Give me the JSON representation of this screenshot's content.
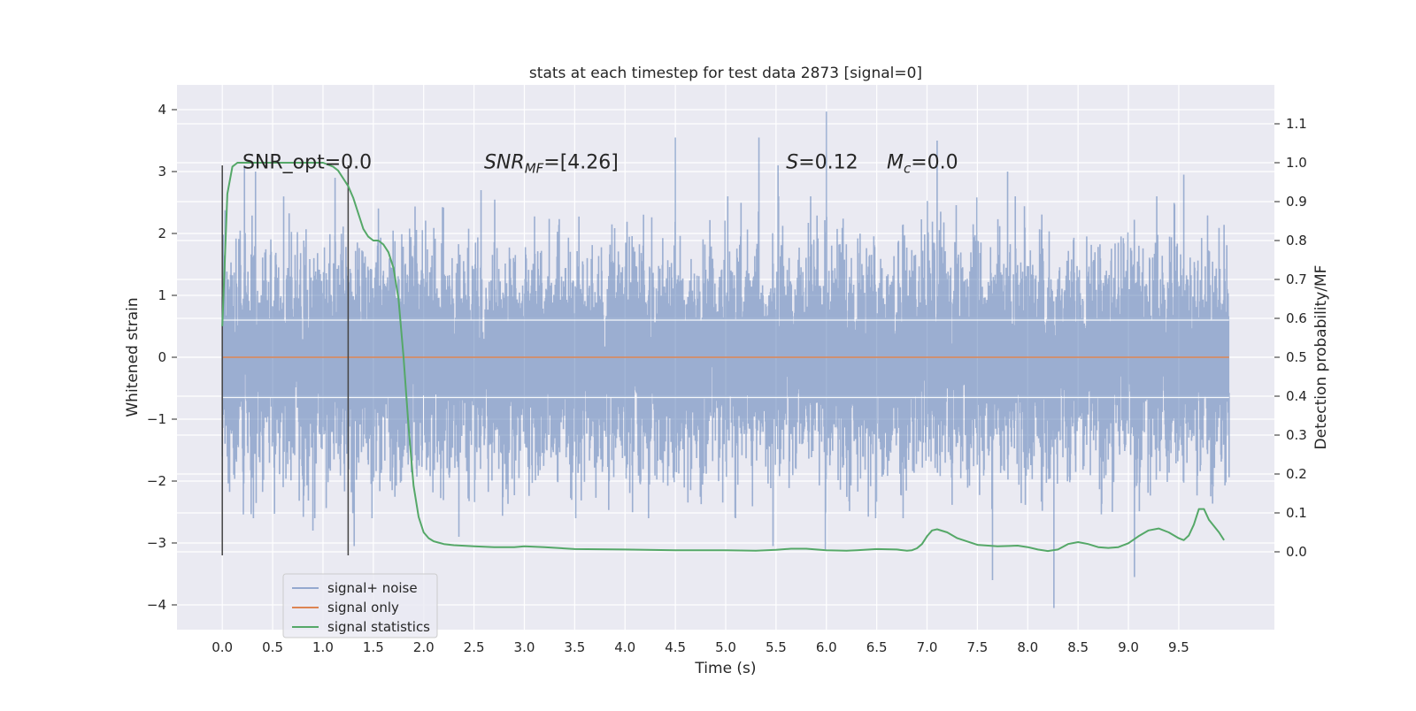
{
  "chart_data": {
    "type": "line",
    "title": "stats at each timestep for test data 2873 [signal=0]",
    "xlabel": "Time (s)",
    "ylabel": "Whitened strain",
    "ylabel_right": "Detection probability/MF",
    "xlim": [
      -0.45,
      10.45
    ],
    "ylim": [
      -4.4,
      4.4
    ],
    "ylim_right": [
      -0.2,
      1.2
    ],
    "x_ticks": [
      0.0,
      0.5,
      1.0,
      1.5,
      2.0,
      2.5,
      3.0,
      3.5,
      4.0,
      4.5,
      5.0,
      5.5,
      6.0,
      6.5,
      7.0,
      7.5,
      8.0,
      8.5,
      9.0,
      9.5
    ],
    "x_tick_labels": [
      "0.0",
      "0.5",
      "1.0",
      "1.5",
      "2.0",
      "2.5",
      "3.0",
      "3.5",
      "4.0",
      "4.5",
      "5.0",
      "5.5",
      "6.0",
      "6.5",
      "7.0",
      "7.5",
      "8.0",
      "8.5",
      "9.0",
      "9.5"
    ],
    "y_ticks": [
      -4,
      -3,
      -2,
      -1,
      0,
      1,
      2,
      3,
      4
    ],
    "y_tick_labels": [
      "−4",
      "−3",
      "−2",
      "−1",
      "0",
      "1",
      "2",
      "3",
      "4"
    ],
    "y_right_ticks": [
      0.0,
      0.1,
      0.2,
      0.3,
      0.4,
      0.5,
      0.6,
      0.7,
      0.8,
      0.9,
      1.0,
      1.1
    ],
    "y_right_tick_labels": [
      "0.0",
      "0.1",
      "0.2",
      "0.3",
      "0.4",
      "0.5",
      "0.6",
      "0.7",
      "0.8",
      "0.9",
      "1.0",
      "1.1"
    ],
    "grid": true,
    "legend_position": "bottom-left",
    "series": [
      {
        "name": "signal+ noise",
        "color": "#4c72b0",
        "axis": "left",
        "style": "dense noisy strain, roughly within -2 to 2.5, spikes up to ~4 and down to ~-4",
        "x_range": [
          0.0,
          10.0
        ],
        "spikes": [
          {
            "x": 0.22,
            "y": 3.1
          },
          {
            "x": 0.33,
            "y": 3.0
          },
          {
            "x": 1.12,
            "y": 2.9
          },
          {
            "x": 2.57,
            "y": 2.7
          },
          {
            "x": 4.5,
            "y": 3.55
          },
          {
            "x": 5.33,
            "y": 3.55
          },
          {
            "x": 5.52,
            "y": 3.1
          },
          {
            "x": 6.0,
            "y": 3.97
          },
          {
            "x": 7.1,
            "y": 3.5
          },
          {
            "x": 7.8,
            "y": 3.0
          },
          {
            "x": 9.55,
            "y": 2.95
          },
          {
            "x": 0.9,
            "y": -2.8
          },
          {
            "x": 1.31,
            "y": -3.05
          },
          {
            "x": 2.35,
            "y": -2.9
          },
          {
            "x": 5.47,
            "y": -3.05
          },
          {
            "x": 5.99,
            "y": -3.1
          },
          {
            "x": 7.65,
            "y": -3.6
          },
          {
            "x": 8.26,
            "y": -4.05
          },
          {
            "x": 9.06,
            "y": -3.55
          }
        ]
      },
      {
        "name": "signal only",
        "color": "#dd8452",
        "axis": "left",
        "x": [
          0.0,
          10.0
        ],
        "y": [
          0.0,
          0.0
        ]
      },
      {
        "name": "signal statistics",
        "color": "#55a868",
        "axis": "right",
        "x": [
          0.0,
          0.05,
          0.1,
          0.15,
          0.2,
          0.3,
          0.5,
          0.8,
          1.0,
          1.1,
          1.15,
          1.2,
          1.25,
          1.3,
          1.35,
          1.4,
          1.45,
          1.5,
          1.55,
          1.6,
          1.65,
          1.7,
          1.75,
          1.8,
          1.85,
          1.9,
          1.95,
          2.0,
          2.05,
          2.1,
          2.2,
          2.3,
          2.5,
          2.7,
          2.9,
          3.0,
          3.2,
          3.5,
          4.0,
          4.5,
          5.0,
          5.3,
          5.5,
          5.65,
          5.8,
          6.0,
          6.2,
          6.3,
          6.5,
          6.7,
          6.8,
          6.85,
          6.9,
          6.95,
          7.0,
          7.05,
          7.1,
          7.2,
          7.3,
          7.5,
          7.7,
          7.9,
          8.0,
          8.1,
          8.2,
          8.3,
          8.4,
          8.5,
          8.6,
          8.7,
          8.8,
          8.9,
          9.0,
          9.1,
          9.2,
          9.3,
          9.4,
          9.5,
          9.55,
          9.6,
          9.65,
          9.7,
          9.75,
          9.8,
          9.9,
          9.95
        ],
        "y": [
          0.58,
          0.92,
          0.99,
          1.0,
          1.0,
          1.0,
          1.0,
          1.0,
          1.0,
          0.99,
          0.98,
          0.96,
          0.94,
          0.91,
          0.87,
          0.83,
          0.81,
          0.8,
          0.8,
          0.79,
          0.77,
          0.73,
          0.65,
          0.5,
          0.32,
          0.17,
          0.09,
          0.05,
          0.035,
          0.027,
          0.02,
          0.017,
          0.014,
          0.012,
          0.012,
          0.014,
          0.012,
          0.007,
          0.006,
          0.004,
          0.004,
          0.003,
          0.005,
          0.008,
          0.008,
          0.004,
          0.003,
          0.004,
          0.007,
          0.006,
          0.003,
          0.004,
          0.009,
          0.02,
          0.04,
          0.055,
          0.058,
          0.05,
          0.035,
          0.018,
          0.014,
          0.016,
          0.012,
          0.006,
          0.002,
          0.006,
          0.02,
          0.025,
          0.02,
          0.012,
          0.01,
          0.012,
          0.022,
          0.04,
          0.055,
          0.06,
          0.05,
          0.035,
          0.03,
          0.042,
          0.07,
          0.11,
          0.11,
          0.082,
          0.05,
          0.03
        ]
      }
    ],
    "vertical_markers": [
      {
        "x": 0.0,
        "y_range": [
          -3.2,
          3.1
        ]
      },
      {
        "x": 1.25,
        "y_range": [
          -3.2,
          3.1
        ]
      }
    ],
    "annotations": [
      {
        "text": "SNR_opt=0.0",
        "x": 0.2,
        "y": 3.05
      },
      {
        "text": "SNR",
        "sub": "MF",
        "suffix": "=[4.26]",
        "x": 2.6,
        "y": 3.05
      },
      {
        "text": "S",
        "suffix": "=0.12",
        "x": 5.6,
        "y": 3.05
      },
      {
        "text": "M",
        "sub": "c",
        "suffix": "=0.0",
        "x": 6.6,
        "y": 3.05
      }
    ]
  }
}
